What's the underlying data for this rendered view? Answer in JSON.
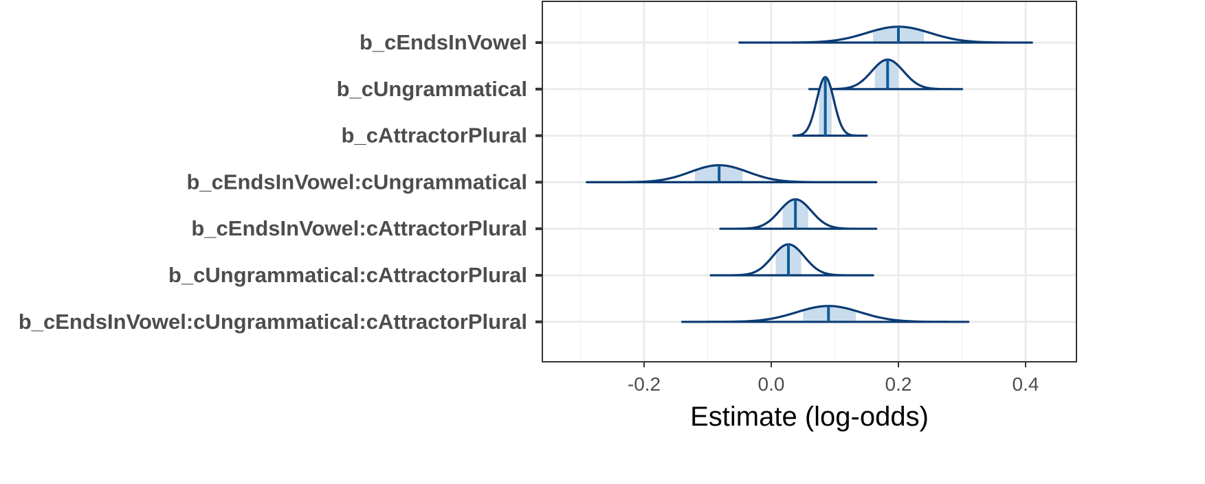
{
  "chart_data": {
    "type": "ridgeline",
    "xlabel": "Estimate (log-odds)",
    "xlim": [
      -0.36,
      0.48
    ],
    "x_ticks": [
      -0.2,
      0.0,
      0.2,
      0.4
    ],
    "x_tick_labels": [
      "-0.2",
      "0.0",
      "0.2",
      "0.4"
    ],
    "grid": true,
    "colors": {
      "line": "#0b3b73",
      "median": "#0e5a9a",
      "interval_fill": "#c9dced",
      "grid": "#ebebeb",
      "panel_border": "#333333"
    },
    "series": [
      {
        "name": "b_cEndsInVowel",
        "min": -0.05,
        "max": 0.41,
        "median": 0.2,
        "interval": [
          0.16,
          0.24
        ],
        "sd": 0.05,
        "height": 0.42
      },
      {
        "name": "b_cUngrammatical",
        "min": 0.06,
        "max": 0.3,
        "median": 0.183,
        "interval": [
          0.163,
          0.2
        ],
        "sd": 0.025,
        "height": 0.78
      },
      {
        "name": "b_cAttractorPlural",
        "min": 0.035,
        "max": 0.15,
        "median": 0.085,
        "interval": [
          0.075,
          0.095
        ],
        "sd": 0.0135,
        "height": 1.55
      },
      {
        "name": "b_cEndsInVowel:cUngrammatical",
        "min": -0.29,
        "max": 0.165,
        "median": -0.082,
        "interval": [
          -0.12,
          -0.045
        ],
        "sd": 0.045,
        "height": 0.45
      },
      {
        "name": "b_cEndsInVowel:cAttractorPlural",
        "min": -0.08,
        "max": 0.165,
        "median": 0.038,
        "interval": [
          0.018,
          0.058
        ],
        "sd": 0.025,
        "height": 0.78
      },
      {
        "name": "b_cUngrammatical:cAttractorPlural",
        "min": -0.095,
        "max": 0.16,
        "median": 0.027,
        "interval": [
          0.007,
          0.047
        ],
        "sd": 0.025,
        "height": 0.82
      },
      {
        "name": "b_cEndsInVowel:cUngrammatical:cAttractorPlural",
        "min": -0.14,
        "max": 0.31,
        "median": 0.09,
        "interval": [
          0.05,
          0.133
        ],
        "sd": 0.05,
        "height": 0.42
      }
    ]
  }
}
